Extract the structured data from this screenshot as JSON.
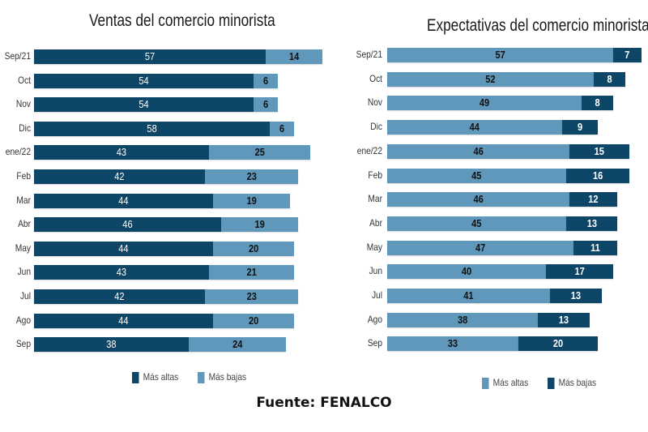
{
  "footer": "Fuente: FENALCO",
  "colors": {
    "dark": "#0d4667",
    "light": "#5f98ba"
  },
  "chart_data": [
    {
      "type": "bar",
      "orientation": "horizontal",
      "stacked": true,
      "title": "Ventas del comercio minorista",
      "categories": [
        "Sep/21",
        "Oct",
        "Nov",
        "Dic",
        "ene/22",
        "Feb",
        "Mar",
        "Abr",
        "May",
        "Jun",
        "Jul",
        "Ago",
        "Sep"
      ],
      "series": [
        {
          "name": "Más altas",
          "color": "#0d4667",
          "values": [
            57,
            54,
            54,
            58,
            43,
            42,
            44,
            46,
            44,
            43,
            42,
            44,
            38
          ]
        },
        {
          "name": "Más bajas",
          "color": "#5f98ba",
          "values": [
            14,
            6,
            6,
            6,
            25,
            23,
            19,
            19,
            20,
            21,
            23,
            20,
            24
          ]
        }
      ],
      "legend": [
        "Más altas",
        "Más bajas"
      ],
      "legend_position": "bottom",
      "grid": false
    },
    {
      "type": "bar",
      "orientation": "horizontal",
      "stacked": true,
      "title": "Expectativas del comercio minorista",
      "categories": [
        "Sep/21",
        "Oct",
        "Nov",
        "Dic",
        "ene/22",
        "Feb",
        "Mar",
        "Abr",
        "May",
        "Jun",
        "Jul",
        "Ago",
        "Sep"
      ],
      "series": [
        {
          "name": "Más altas",
          "color": "#5f98ba",
          "values": [
            57,
            52,
            49,
            44,
            46,
            45,
            46,
            45,
            47,
            40,
            41,
            38,
            33
          ]
        },
        {
          "name": "Más bajas",
          "color": "#0d4667",
          "values": [
            7,
            8,
            8,
            9,
            15,
            16,
            12,
            13,
            11,
            17,
            13,
            13,
            20
          ]
        }
      ],
      "legend": [
        "Más altas",
        "Más bajas"
      ],
      "legend_position": "bottom",
      "grid": false
    }
  ]
}
